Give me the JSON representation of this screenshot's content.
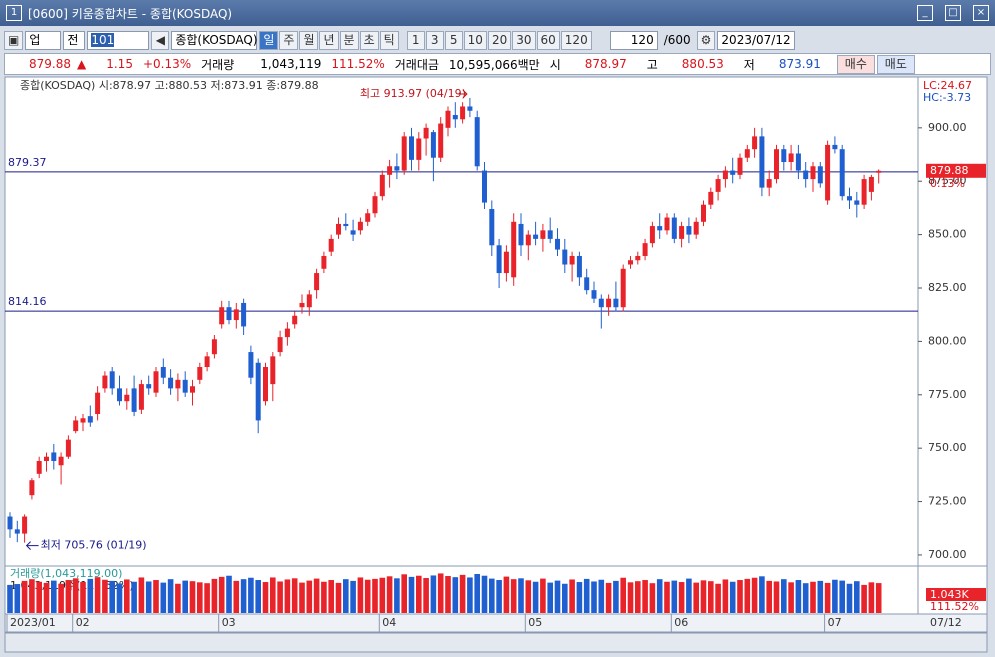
{
  "ui": {
    "title": "[0600] 키움종합차트 - 종합(KOSDAQ)",
    "toolbar": {
      "market": "업",
      "range": "전",
      "code": "101",
      "name": "종합(KOSDAQ)",
      "periods": [
        "일",
        "주",
        "월",
        "년",
        "분",
        "초",
        "틱"
      ],
      "intervals": [
        "1",
        "3",
        "5",
        "10",
        "20",
        "30",
        "60",
        "120"
      ],
      "count": "120",
      "max": "/600",
      "date": "2023/07/12"
    },
    "quote": {
      "price": "879.88",
      "arrow": "▲",
      "change": "1.15",
      "change_pct": "+0.13%",
      "volume_label": "거래량",
      "volume": "1,043,119",
      "volume_pct": "111.52%",
      "amount_label": "거래대금",
      "amount": "10,595,066백만",
      "open_label": "시",
      "open": "878.97",
      "high_label": "고",
      "high": "880.53",
      "low_label": "저",
      "low": "873.91",
      "buy": "매수",
      "sell": "매도"
    }
  },
  "chart_data": {
    "type": "candlestick",
    "legend": "종합(KOSDAQ) 시:878.97 고:880.53 저:873.91 종:879.88",
    "lc": "LC:24.67",
    "hc": "HC:-3.73",
    "price_box": "879.88",
    "price_pct": "0.13%",
    "high_note": "최고 913.97 (04/19)",
    "low_note": "최저 705.76 (01/19)",
    "volume_title": "거래량(1,043,119.00)",
    "volume_sub": "1,043,119주(111.52%)",
    "volume_box": "1.043K",
    "volume_box_pct": "111.52%",
    "last_date": "07/12",
    "up_color": "#e8232a",
    "down_color": "#1f5fcf",
    "hline_color": "#1a1a8c",
    "hlines": [
      879.37,
      814.16
    ],
    "ylim": [
      695.3,
      923.8
    ],
    "yticks": [
      {
        "value": 900,
        "label": "900.00"
      },
      {
        "value": 875,
        "label": "875.00"
      },
      {
        "value": 850,
        "label": "850.00"
      },
      {
        "value": 825,
        "label": "825.00"
      },
      {
        "value": 800,
        "label": "800.00"
      },
      {
        "value": 775,
        "label": "775.00"
      },
      {
        "value": 750,
        "label": "750.00"
      },
      {
        "value": 725,
        "label": "725.00"
      },
      {
        "value": 700,
        "label": "700.00"
      }
    ],
    "xticks": [
      {
        "value": 0,
        "label": "2023/01"
      },
      {
        "value": 9,
        "label": "02"
      },
      {
        "value": 29,
        "label": "03"
      },
      {
        "value": 51,
        "label": "04"
      },
      {
        "value": 71,
        "label": "05"
      },
      {
        "value": 91,
        "label": "06"
      },
      {
        "value": 112,
        "label": "07"
      }
    ],
    "ohlc": [
      [
        718,
        720,
        708,
        712
      ],
      [
        712,
        716,
        706,
        710
      ],
      [
        710,
        719,
        705.76,
        718
      ],
      [
        728,
        736,
        726,
        735
      ],
      [
        738,
        746,
        736,
        744
      ],
      [
        744,
        748,
        739,
        746
      ],
      [
        748,
        752,
        740,
        744
      ],
      [
        742,
        748,
        733,
        746
      ],
      [
        746,
        756,
        745,
        754
      ],
      [
        758,
        765,
        757,
        763
      ],
      [
        762,
        766,
        758,
        764
      ],
      [
        765,
        770,
        760,
        762
      ],
      [
        766,
        779,
        763,
        776
      ],
      [
        778,
        786,
        776,
        784
      ],
      [
        786,
        788,
        775,
        778
      ],
      [
        778,
        784,
        770,
        772
      ],
      [
        772,
        778,
        768,
        775
      ],
      [
        778,
        784,
        765,
        767
      ],
      [
        768,
        782,
        766,
        780
      ],
      [
        780,
        784,
        775,
        778
      ],
      [
        776,
        788,
        774,
        786
      ],
      [
        788,
        792,
        780,
        783
      ],
      [
        783,
        787,
        775,
        778
      ],
      [
        778,
        785,
        772,
        782
      ],
      [
        782,
        786,
        774,
        776
      ],
      [
        776,
        782,
        770,
        779
      ],
      [
        782,
        790,
        780,
        788
      ],
      [
        788,
        795,
        786,
        793
      ],
      [
        794,
        803,
        792,
        801
      ],
      [
        808,
        819,
        806,
        816
      ],
      [
        816,
        819,
        808,
        810
      ],
      [
        810,
        818,
        806,
        815
      ],
      [
        818,
        820,
        803,
        807
      ],
      [
        795,
        798,
        780,
        783
      ],
      [
        790,
        792,
        757,
        763
      ],
      [
        772,
        790,
        770,
        788
      ],
      [
        780,
        795,
        772,
        793
      ],
      [
        795,
        805,
        793,
        802
      ],
      [
        802,
        809,
        798,
        806
      ],
      [
        808,
        814,
        806,
        812
      ],
      [
        816,
        822,
        813,
        818
      ],
      [
        816,
        824,
        812,
        822
      ],
      [
        824,
        834,
        820,
        832
      ],
      [
        834,
        842,
        832,
        840
      ],
      [
        842,
        850,
        840,
        848
      ],
      [
        850,
        858,
        848,
        855
      ],
      [
        855,
        860,
        852,
        854
      ],
      [
        852,
        857,
        847,
        850
      ],
      [
        852,
        858,
        850,
        856
      ],
      [
        856,
        862,
        854,
        860
      ],
      [
        860,
        870,
        858,
        868
      ],
      [
        868,
        880,
        866,
        878
      ],
      [
        878,
        885,
        872,
        882
      ],
      [
        882,
        888,
        876,
        880
      ],
      [
        880,
        898,
        878,
        896
      ],
      [
        896,
        900,
        880,
        885
      ],
      [
        885,
        898,
        880,
        895
      ],
      [
        895,
        902,
        887,
        900
      ],
      [
        898,
        899,
        875,
        886
      ],
      [
        886,
        905,
        884,
        902
      ],
      [
        900,
        910,
        896,
        908
      ],
      [
        906,
        912,
        900,
        904
      ],
      [
        904,
        912,
        902,
        910
      ],
      [
        910,
        913.97,
        905,
        908
      ],
      [
        905,
        908,
        880,
        882
      ],
      [
        880,
        884,
        862,
        865
      ],
      [
        862,
        866,
        840,
        845
      ],
      [
        845,
        848,
        825,
        832
      ],
      [
        832,
        845,
        828,
        842
      ],
      [
        830,
        860,
        826,
        856
      ],
      [
        855,
        860,
        840,
        845
      ],
      [
        845,
        852,
        838,
        850
      ],
      [
        850,
        856,
        845,
        848
      ],
      [
        848,
        855,
        842,
        852
      ],
      [
        852,
        858,
        846,
        848
      ],
      [
        848,
        853,
        840,
        843
      ],
      [
        843,
        848,
        832,
        836
      ],
      [
        836,
        842,
        828,
        840
      ],
      [
        840,
        842,
        826,
        830
      ],
      [
        830,
        834,
        822,
        824
      ],
      [
        824,
        828,
        818,
        820
      ],
      [
        820,
        822,
        806,
        816
      ],
      [
        816,
        822,
        812,
        820
      ],
      [
        820,
        828,
        814,
        816
      ],
      [
        816,
        836,
        814,
        834
      ],
      [
        836,
        840,
        834,
        838
      ],
      [
        838,
        842,
        836,
        840
      ],
      [
        840,
        848,
        838,
        846
      ],
      [
        846,
        856,
        844,
        854
      ],
      [
        854,
        860,
        848,
        852
      ],
      [
        852,
        860,
        850,
        858
      ],
      [
        858,
        860,
        846,
        848
      ],
      [
        848,
        856,
        844,
        854
      ],
      [
        854,
        858,
        846,
        850
      ],
      [
        850,
        858,
        848,
        856
      ],
      [
        856,
        866,
        854,
        864
      ],
      [
        864,
        872,
        862,
        870
      ],
      [
        870,
        878,
        866,
        876
      ],
      [
        876,
        882,
        872,
        880
      ],
      [
        880,
        886,
        874,
        878
      ],
      [
        878,
        888,
        876,
        886
      ],
      [
        886,
        892,
        884,
        890
      ],
      [
        890,
        900,
        886,
        896
      ],
      [
        896,
        900,
        868,
        872
      ],
      [
        872,
        880,
        868,
        876
      ],
      [
        876,
        892,
        874,
        890
      ],
      [
        890,
        892,
        880,
        884
      ],
      [
        884,
        892,
        880,
        888
      ],
      [
        888,
        892,
        876,
        880
      ],
      [
        880,
        884,
        872,
        876
      ],
      [
        876,
        884,
        870,
        882
      ],
      [
        882,
        884,
        872,
        874
      ],
      [
        866,
        894,
        864,
        892
      ],
      [
        892,
        896,
        888,
        890
      ],
      [
        890,
        892,
        866,
        868
      ],
      [
        868,
        872,
        862,
        866
      ],
      [
        866,
        870,
        858,
        864
      ],
      [
        864,
        878,
        862,
        876
      ],
      [
        870,
        878,
        866,
        877
      ],
      [
        878.97,
        880.53,
        873.91,
        879.88
      ]
    ],
    "volume_ylim": [
      0,
      1500000
    ],
    "volumes": [
      980000,
      1010000,
      1120000,
      1180000,
      1090000,
      1050000,
      1130000,
      1020000,
      1150000,
      1210000,
      1080000,
      1190000,
      1250000,
      1160000,
      1120000,
      1030000,
      1170000,
      1090000,
      1240000,
      1100000,
      1150000,
      1060000,
      1180000,
      1020000,
      1130000,
      1110000,
      1070000,
      1040000,
      1190000,
      1260000,
      1300000,
      1120000,
      1180000,
      1230000,
      1150000,
      1080000,
      1240000,
      1100000,
      1170000,
      1210000,
      1060000,
      1130000,
      1200000,
      1090000,
      1150000,
      1050000,
      1180000,
      1120000,
      1240000,
      1160000,
      1190000,
      1230000,
      1280000,
      1210000,
      1350000,
      1260000,
      1300000,
      1220000,
      1310000,
      1380000,
      1290000,
      1250000,
      1330000,
      1240000,
      1360000,
      1300000,
      1200000,
      1150000,
      1270000,
      1180000,
      1210000,
      1140000,
      1090000,
      1200000,
      1060000,
      1130000,
      1020000,
      1170000,
      1080000,
      1190000,
      1100000,
      1160000,
      1050000,
      1120000,
      1230000,
      1070000,
      1110000,
      1150000,
      1040000,
      1180000,
      1090000,
      1130000,
      1080000,
      1200000,
      1060000,
      1140000,
      1110000,
      1020000,
      1170000,
      1090000,
      1150000,
      1190000,
      1230000,
      1280000,
      1120000,
      1100000,
      1180000,
      1070000,
      1150000,
      1040000,
      1090000,
      1120000,
      1050000,
      1160000,
      1130000,
      1020000,
      1110000,
      980000,
      1070000,
      1043119
    ]
  }
}
